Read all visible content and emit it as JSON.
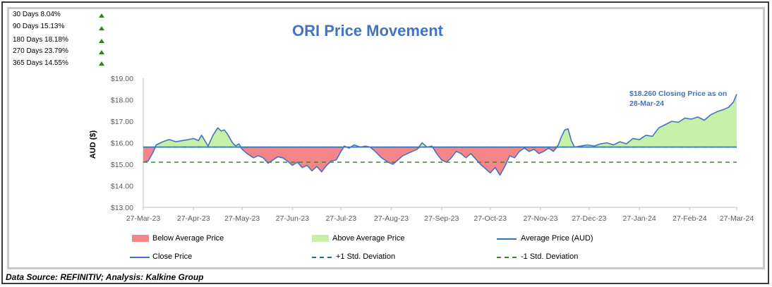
{
  "returns": [
    {
      "label": "30 Days 8.04%",
      "direction": "up"
    },
    {
      "label": "90 Days 15.13%",
      "direction": "up"
    },
    {
      "label": "180 Days 18.18%",
      "direction": "up"
    },
    {
      "label": "270 Days 23.79%",
      "direction": "up"
    },
    {
      "label": "365 Days 14.55%",
      "direction": "up"
    }
  ],
  "source": "Data Source: REFINITIV; Analysis: Kalkine Group",
  "chart_data": {
    "type": "line",
    "title": "ORI Price Movement",
    "ylabel": "AUD ($)",
    "xlabel": "",
    "ylim": [
      13.0,
      19.0
    ],
    "yticks": [
      13,
      14,
      15,
      16,
      17,
      18,
      19
    ],
    "ytick_labels": [
      "$13.00",
      "$14.00",
      "$15.00",
      "$16.00",
      "$17.00",
      "$18.00",
      "$19.00"
    ],
    "x_range": [
      0,
      366
    ],
    "xticks": [
      0,
      31,
      61,
      92,
      122,
      153,
      184,
      214,
      245,
      275,
      306,
      337,
      366
    ],
    "xtick_labels": [
      "27-Mar-23",
      "27-Apr-23",
      "27-May-23",
      "27-Jun-23",
      "27-Jul-23",
      "27-Aug-23",
      "27-Sep-23",
      "27-Oct-23",
      "27-Nov-23",
      "27-Dec-23",
      "27-Jan-24",
      "27-Feb-24",
      "27-Mar-24"
    ],
    "average_price": 15.8,
    "plus_1_std": 15.8,
    "minus_1_std": 15.1,
    "series": [
      {
        "name": "Close Price",
        "color": "#4472c4",
        "points": [
          [
            0,
            15.1
          ],
          [
            3,
            15.15
          ],
          [
            6,
            15.55
          ],
          [
            8,
            15.9
          ],
          [
            12,
            16.05
          ],
          [
            16,
            16.15
          ],
          [
            20,
            16.05
          ],
          [
            24,
            16.1
          ],
          [
            28,
            16.15
          ],
          [
            31,
            16.2
          ],
          [
            34,
            16.1
          ],
          [
            36,
            16.35
          ],
          [
            38,
            16.1
          ],
          [
            40,
            15.85
          ],
          [
            43,
            16.35
          ],
          [
            46,
            16.7
          ],
          [
            48,
            16.55
          ],
          [
            50,
            16.6
          ],
          [
            52,
            16.4
          ],
          [
            55,
            16.0
          ],
          [
            57,
            15.85
          ],
          [
            59,
            15.95
          ],
          [
            61,
            15.7
          ],
          [
            64,
            15.5
          ],
          [
            68,
            15.3
          ],
          [
            71,
            15.4
          ],
          [
            74,
            15.3
          ],
          [
            77,
            15.05
          ],
          [
            80,
            15.2
          ],
          [
            83,
            15.35
          ],
          [
            86,
            15.3
          ],
          [
            89,
            15.15
          ],
          [
            92,
            14.95
          ],
          [
            95,
            15.1
          ],
          [
            98,
            14.85
          ],
          [
            101,
            14.95
          ],
          [
            104,
            14.7
          ],
          [
            107,
            14.9
          ],
          [
            110,
            14.65
          ],
          [
            113,
            14.95
          ],
          [
            116,
            15.15
          ],
          [
            119,
            15.2
          ],
          [
            122,
            15.6
          ],
          [
            124,
            15.85
          ],
          [
            127,
            15.75
          ],
          [
            130,
            15.9
          ],
          [
            134,
            15.8
          ],
          [
            137,
            15.85
          ],
          [
            140,
            15.8
          ],
          [
            143,
            15.6
          ],
          [
            147,
            15.3
          ],
          [
            151,
            15.1
          ],
          [
            154,
            15.0
          ],
          [
            157,
            15.2
          ],
          [
            160,
            15.4
          ],
          [
            163,
            15.5
          ],
          [
            166,
            15.6
          ],
          [
            169,
            15.7
          ],
          [
            172,
            16.0
          ],
          [
            175,
            15.8
          ],
          [
            178,
            15.85
          ],
          [
            181,
            15.5
          ],
          [
            184,
            15.2
          ],
          [
            187,
            15.1
          ],
          [
            190,
            15.3
          ],
          [
            193,
            15.6
          ],
          [
            196,
            15.5
          ],
          [
            199,
            15.3
          ],
          [
            202,
            15.5
          ],
          [
            205,
            15.25
          ],
          [
            208,
            15.0
          ],
          [
            211,
            14.8
          ],
          [
            214,
            14.6
          ],
          [
            217,
            14.85
          ],
          [
            220,
            14.5
          ],
          [
            223,
            14.9
          ],
          [
            226,
            15.4
          ],
          [
            229,
            15.3
          ],
          [
            232,
            15.6
          ],
          [
            235,
            15.75
          ],
          [
            238,
            15.6
          ],
          [
            241,
            15.7
          ],
          [
            244,
            15.5
          ],
          [
            247,
            15.6
          ],
          [
            250,
            15.75
          ],
          [
            253,
            15.6
          ],
          [
            256,
            15.9
          ],
          [
            258,
            16.3
          ],
          [
            260,
            16.6
          ],
          [
            262,
            16.65
          ],
          [
            264,
            16.1
          ],
          [
            266,
            15.8
          ],
          [
            270,
            15.85
          ],
          [
            274,
            15.9
          ],
          [
            278,
            15.85
          ],
          [
            282,
            15.95
          ],
          [
            286,
            16.0
          ],
          [
            290,
            15.9
          ],
          [
            294,
            16.05
          ],
          [
            298,
            15.95
          ],
          [
            302,
            16.2
          ],
          [
            306,
            16.15
          ],
          [
            310,
            16.35
          ],
          [
            314,
            16.3
          ],
          [
            318,
            16.7
          ],
          [
            322,
            16.85
          ],
          [
            326,
            17.0
          ],
          [
            330,
            16.95
          ],
          [
            334,
            17.15
          ],
          [
            338,
            17.1
          ],
          [
            342,
            17.2
          ],
          [
            346,
            17.05
          ],
          [
            350,
            17.3
          ],
          [
            354,
            17.45
          ],
          [
            358,
            17.55
          ],
          [
            361,
            17.65
          ],
          [
            364,
            17.9
          ],
          [
            366,
            18.26
          ]
        ]
      }
    ],
    "annotation": [
      "$18.260 Closing Price as on",
      "28-Mar-24"
    ],
    "legend": [
      {
        "label": "Below Average Price",
        "kind": "fill",
        "color": "#f4868a"
      },
      {
        "label": "Above Average Price",
        "kind": "fill",
        "color": "#c6efa7"
      },
      {
        "label": "Average Price (AUD)",
        "kind": "line",
        "color": "#2e75b6"
      },
      {
        "label": "Close Price",
        "kind": "line",
        "color": "#4472c4"
      },
      {
        "label": "+1 Std. Deviation",
        "kind": "dash",
        "color": "#2e5fa8"
      },
      {
        "label": "-1 Std. Deviation",
        "kind": "dash",
        "color": "#3a8a2a"
      }
    ],
    "colors": {
      "below_fill": "#f4868a",
      "above_fill": "#c6efa7",
      "average_line": "#2e75b6",
      "close_line": "#4472c4",
      "plus_std": "#2e5fa8",
      "minus_std": "#3a8a2a"
    }
  }
}
